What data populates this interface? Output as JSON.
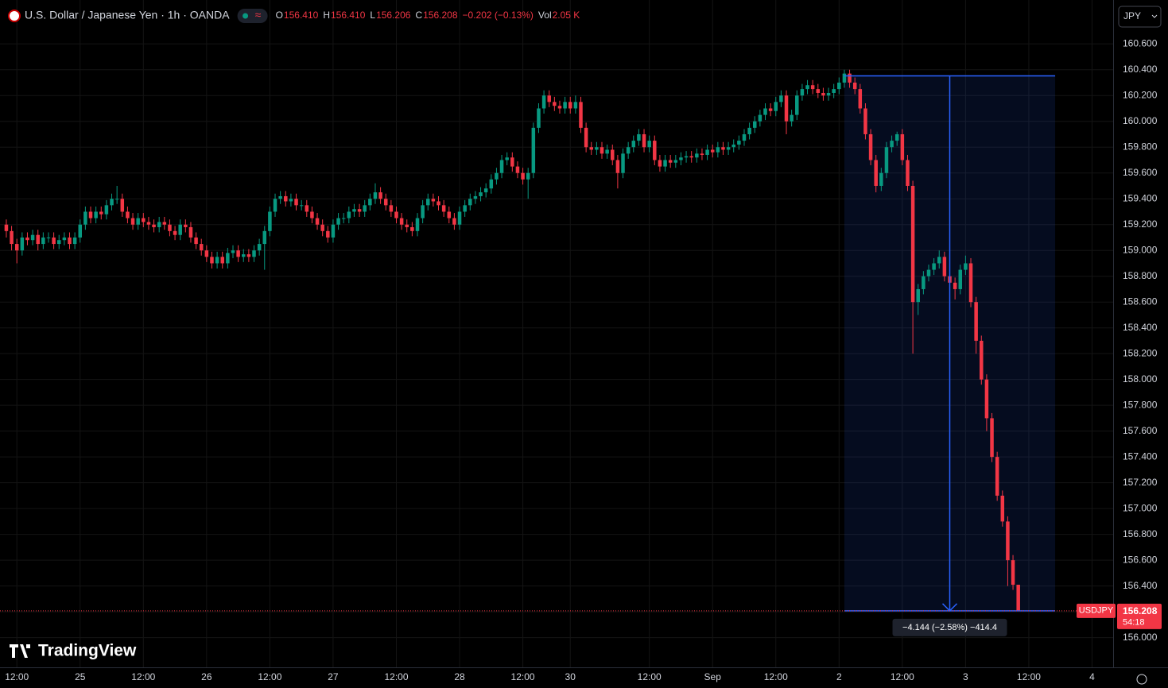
{
  "header": {
    "symbol": "U.S. Dollar / Japanese Yen · 1h · OANDA",
    "badge": "≈",
    "fields": [
      {
        "label": "O",
        "value": "156.410"
      },
      {
        "label": "H",
        "value": "156.410"
      },
      {
        "label": "L",
        "value": "156.206"
      },
      {
        "label": "C",
        "value": "156.208"
      },
      {
        "label": "",
        "value": "−0.202 (−0.13%)"
      },
      {
        "label": "Vol",
        "value": "2.05 K"
      }
    ]
  },
  "currency": "JPY",
  "logo": "TradingView",
  "last_label": {
    "symbol": "USDJPY",
    "price": "156.208",
    "countdown": "54:18"
  },
  "chart_data": {
    "type": "candlestick",
    "up_color": "#089981",
    "down_color": "#f23645",
    "grid": true,
    "xlim": [
      -1.2,
      210
    ],
    "ylim": [
      155.77,
      160.94
    ],
    "xticks": [
      {
        "value": 2,
        "label": "12:00"
      },
      {
        "value": 14,
        "label": "25"
      },
      {
        "value": 26,
        "label": "12:00"
      },
      {
        "value": 38,
        "label": "26"
      },
      {
        "value": 50,
        "label": "12:00"
      },
      {
        "value": 62,
        "label": "27"
      },
      {
        "value": 74,
        "label": "12:00"
      },
      {
        "value": 86,
        "label": "28"
      },
      {
        "value": 98,
        "label": "12:00"
      },
      {
        "value": 107,
        "label": "30"
      },
      {
        "value": 122,
        "label": "12:00"
      },
      {
        "value": 134,
        "label": "Sep"
      },
      {
        "value": 146,
        "label": "12:00"
      },
      {
        "value": 158,
        "label": "2"
      },
      {
        "value": 170,
        "label": "12:00"
      },
      {
        "value": 182,
        "label": "3"
      },
      {
        "value": 194,
        "label": "12:00"
      },
      {
        "value": 206,
        "label": "4"
      }
    ],
    "yticks": [
      {
        "value": 156,
        "label": "156.000"
      },
      {
        "value": 156.2,
        "label": "156.200"
      },
      {
        "value": 156.4,
        "label": "156.400"
      },
      {
        "value": 156.6,
        "label": "156.600"
      },
      {
        "value": 156.8,
        "label": "156.800"
      },
      {
        "value": 157,
        "label": "157.000"
      },
      {
        "value": 157.2,
        "label": "157.200"
      },
      {
        "value": 157.4,
        "label": "157.400"
      },
      {
        "value": 157.6,
        "label": "157.600"
      },
      {
        "value": 157.8,
        "label": "157.800"
      },
      {
        "value": 158,
        "label": "158.000"
      },
      {
        "value": 158.2,
        "label": "158.200"
      },
      {
        "value": 158.4,
        "label": "158.400"
      },
      {
        "value": 158.6,
        "label": "158.600"
      },
      {
        "value": 158.8,
        "label": "158.800"
      },
      {
        "value": 159,
        "label": "159.000"
      },
      {
        "value": 159.2,
        "label": "159.200"
      },
      {
        "value": 159.4,
        "label": "159.400"
      },
      {
        "value": 159.6,
        "label": "159.600"
      },
      {
        "value": 159.8,
        "label": "159.800"
      },
      {
        "value": 160,
        "label": "160.000"
      },
      {
        "value": 160.2,
        "label": "160.200"
      },
      {
        "value": 160.4,
        "label": "160.400"
      },
      {
        "value": 160.6,
        "label": "160.600"
      }
    ],
    "measure": {
      "start": 159,
      "end": 199,
      "high": 160.352,
      "low": 156.208,
      "color": "#2962ff",
      "label": "−4.144 (−2.58%) −414.4"
    },
    "candles": [
      [
        159.2,
        159.24,
        159.1,
        159.15
      ],
      [
        159.15,
        159.19,
        159.0,
        159.05
      ],
      [
        159.05,
        159.09,
        158.9,
        159.0
      ],
      [
        159.0,
        159.14,
        158.96,
        159.1
      ],
      [
        159.1,
        159.14,
        159.04,
        159.08
      ],
      [
        159.08,
        159.16,
        159.04,
        159.12
      ],
      [
        159.12,
        159.16,
        159.0,
        159.05
      ],
      [
        159.05,
        159.14,
        159.01,
        159.1
      ],
      [
        159.1,
        159.14,
        159.06,
        159.1
      ],
      [
        159.1,
        159.14,
        159.01,
        159.05
      ],
      [
        159.05,
        159.12,
        159.01,
        159.08
      ],
      [
        159.08,
        159.14,
        159.04,
        159.1
      ],
      [
        159.1,
        159.14,
        159.01,
        159.05
      ],
      [
        159.05,
        159.14,
        159.01,
        159.1
      ],
      [
        159.1,
        159.24,
        159.06,
        159.2
      ],
      [
        159.2,
        159.34,
        159.16,
        159.3
      ],
      [
        159.3,
        159.34,
        159.21,
        159.25
      ],
      [
        159.25,
        159.34,
        159.21,
        159.3
      ],
      [
        159.3,
        159.34,
        159.24,
        159.28
      ],
      [
        159.28,
        159.39,
        159.24,
        159.35
      ],
      [
        159.35,
        159.44,
        159.31,
        159.4
      ],
      [
        159.4,
        159.5,
        159.36,
        159.4
      ],
      [
        159.4,
        159.44,
        159.26,
        159.3
      ],
      [
        159.3,
        159.34,
        159.21,
        159.25
      ],
      [
        159.25,
        159.29,
        159.16,
        159.2
      ],
      [
        159.2,
        159.29,
        159.16,
        159.25
      ],
      [
        159.25,
        159.29,
        159.18,
        159.22
      ],
      [
        159.22,
        159.26,
        159.16,
        159.2
      ],
      [
        159.2,
        159.24,
        159.14,
        159.18
      ],
      [
        159.18,
        159.26,
        159.14,
        159.22
      ],
      [
        159.22,
        159.26,
        159.16,
        159.2
      ],
      [
        159.2,
        159.24,
        159.11,
        159.15
      ],
      [
        159.15,
        159.19,
        159.08,
        159.12
      ],
      [
        159.12,
        159.24,
        159.08,
        159.2
      ],
      [
        159.2,
        159.24,
        159.14,
        159.18
      ],
      [
        159.18,
        159.22,
        159.06,
        159.1
      ],
      [
        159.1,
        159.14,
        159.01,
        159.05
      ],
      [
        159.05,
        159.09,
        158.96,
        159.0
      ],
      [
        159.0,
        159.04,
        158.91,
        158.95
      ],
      [
        158.95,
        158.99,
        158.86,
        158.9
      ],
      [
        158.9,
        158.99,
        158.86,
        158.95
      ],
      [
        158.95,
        158.99,
        158.86,
        158.9
      ],
      [
        158.9,
        159.02,
        158.86,
        158.98
      ],
      [
        158.98,
        159.04,
        158.94,
        159.0
      ],
      [
        159.0,
        159.04,
        158.91,
        158.95
      ],
      [
        158.95,
        159.01,
        158.91,
        158.97
      ],
      [
        158.97,
        159.01,
        158.91,
        158.95
      ],
      [
        158.95,
        159.04,
        158.91,
        159.0
      ],
      [
        159.0,
        159.09,
        158.96,
        159.05
      ],
      [
        159.05,
        159.19,
        158.85,
        159.15
      ],
      [
        159.15,
        159.34,
        159.11,
        159.3
      ],
      [
        159.3,
        159.44,
        159.26,
        159.4
      ],
      [
        159.4,
        159.46,
        159.36,
        159.42
      ],
      [
        159.42,
        159.46,
        159.34,
        159.38
      ],
      [
        159.38,
        159.44,
        159.34,
        159.4
      ],
      [
        159.4,
        159.44,
        159.31,
        159.35
      ],
      [
        159.35,
        159.39,
        159.31,
        159.35
      ],
      [
        159.35,
        159.39,
        159.26,
        159.3
      ],
      [
        159.3,
        159.34,
        159.21,
        159.25
      ],
      [
        159.25,
        159.29,
        159.16,
        159.2
      ],
      [
        159.2,
        159.24,
        159.11,
        159.15
      ],
      [
        159.15,
        159.19,
        159.06,
        159.1
      ],
      [
        159.1,
        159.24,
        159.06,
        159.2
      ],
      [
        159.2,
        159.29,
        159.16,
        159.25
      ],
      [
        159.25,
        159.29,
        159.21,
        159.25
      ],
      [
        159.25,
        159.34,
        159.21,
        159.3
      ],
      [
        159.3,
        159.36,
        159.26,
        159.32
      ],
      [
        159.32,
        159.36,
        159.26,
        159.3
      ],
      [
        159.3,
        159.39,
        159.26,
        159.35
      ],
      [
        159.35,
        159.44,
        159.31,
        159.4
      ],
      [
        159.4,
        159.52,
        159.36,
        159.45
      ],
      [
        159.45,
        159.49,
        159.36,
        159.4
      ],
      [
        159.4,
        159.44,
        159.31,
        159.35
      ],
      [
        159.35,
        159.39,
        159.26,
        159.3
      ],
      [
        159.3,
        159.34,
        159.21,
        159.25
      ],
      [
        159.25,
        159.29,
        159.16,
        159.2
      ],
      [
        159.2,
        159.24,
        159.14,
        159.18
      ],
      [
        159.18,
        159.22,
        159.11,
        159.15
      ],
      [
        159.15,
        159.29,
        159.11,
        159.25
      ],
      [
        159.25,
        159.39,
        159.21,
        159.35
      ],
      [
        159.35,
        159.44,
        159.31,
        159.4
      ],
      [
        159.4,
        159.44,
        159.34,
        159.38
      ],
      [
        159.38,
        159.42,
        159.31,
        159.35
      ],
      [
        159.35,
        159.39,
        159.26,
        159.3
      ],
      [
        159.3,
        159.34,
        159.21,
        159.25
      ],
      [
        159.25,
        159.29,
        159.16,
        159.2
      ],
      [
        159.2,
        159.34,
        159.16,
        159.3
      ],
      [
        159.3,
        159.39,
        159.26,
        159.35
      ],
      [
        159.35,
        159.44,
        159.31,
        159.4
      ],
      [
        159.4,
        159.46,
        159.36,
        159.42
      ],
      [
        159.42,
        159.49,
        159.38,
        159.45
      ],
      [
        159.45,
        159.52,
        159.41,
        159.48
      ],
      [
        159.48,
        159.59,
        159.44,
        159.55
      ],
      [
        159.55,
        159.64,
        159.51,
        159.6
      ],
      [
        159.6,
        159.74,
        159.56,
        159.7
      ],
      [
        159.7,
        159.76,
        159.66,
        159.72
      ],
      [
        159.72,
        159.76,
        159.61,
        159.65
      ],
      [
        159.65,
        159.69,
        159.56,
        159.6
      ],
      [
        159.6,
        159.64,
        159.51,
        159.55
      ],
      [
        159.55,
        159.64,
        159.4,
        159.6
      ],
      [
        159.6,
        159.99,
        159.56,
        159.95
      ],
      [
        159.95,
        160.14,
        159.91,
        160.1
      ],
      [
        160.1,
        160.24,
        160.06,
        160.2
      ],
      [
        160.2,
        160.24,
        160.11,
        160.15
      ],
      [
        160.15,
        160.19,
        160.08,
        160.12
      ],
      [
        160.12,
        160.16,
        160.06,
        160.1
      ],
      [
        160.1,
        160.19,
        160.06,
        160.15
      ],
      [
        160.15,
        160.19,
        160.06,
        160.1
      ],
      [
        160.1,
        160.2,
        160.06,
        160.15
      ],
      [
        160.15,
        160.19,
        159.91,
        159.95
      ],
      [
        159.95,
        159.99,
        159.76,
        159.8
      ],
      [
        159.8,
        159.84,
        159.74,
        159.78
      ],
      [
        159.78,
        159.84,
        159.74,
        159.8
      ],
      [
        159.8,
        159.84,
        159.71,
        159.75
      ],
      [
        159.75,
        159.82,
        159.71,
        159.78
      ],
      [
        159.78,
        159.82,
        159.66,
        159.7
      ],
      [
        159.7,
        159.74,
        159.48,
        159.6
      ],
      [
        159.6,
        159.79,
        159.56,
        159.75
      ],
      [
        159.75,
        159.84,
        159.71,
        159.8
      ],
      [
        159.8,
        159.89,
        159.76,
        159.85
      ],
      [
        159.85,
        159.94,
        159.81,
        159.9
      ],
      [
        159.9,
        159.94,
        159.76,
        159.8
      ],
      [
        159.8,
        159.89,
        159.76,
        159.85
      ],
      [
        159.85,
        159.89,
        159.66,
        159.7
      ],
      [
        159.7,
        159.74,
        159.61,
        159.65
      ],
      [
        159.65,
        159.74,
        159.61,
        159.7
      ],
      [
        159.7,
        159.74,
        159.64,
        159.68
      ],
      [
        159.68,
        159.74,
        159.64,
        159.7
      ],
      [
        159.7,
        159.76,
        159.66,
        159.72
      ],
      [
        159.72,
        159.77,
        159.68,
        159.73
      ],
      [
        159.73,
        159.77,
        159.68,
        159.72
      ],
      [
        159.72,
        159.79,
        159.68,
        159.75
      ],
      [
        159.75,
        159.79,
        159.7,
        159.74
      ],
      [
        159.74,
        159.82,
        159.7,
        159.78
      ],
      [
        159.78,
        159.82,
        159.72,
        159.76
      ],
      [
        159.76,
        159.84,
        159.72,
        159.8
      ],
      [
        159.8,
        159.84,
        159.74,
        159.78
      ],
      [
        159.78,
        159.84,
        159.74,
        159.8
      ],
      [
        159.8,
        159.86,
        159.76,
        159.82
      ],
      [
        159.82,
        159.89,
        159.78,
        159.85
      ],
      [
        159.85,
        159.94,
        159.81,
        159.9
      ],
      [
        159.9,
        159.99,
        159.86,
        159.95
      ],
      [
        159.95,
        160.04,
        159.91,
        160.0
      ],
      [
        160.0,
        160.09,
        159.96,
        160.05
      ],
      [
        160.05,
        160.14,
        160.01,
        160.1
      ],
      [
        160.1,
        160.14,
        160.04,
        160.08
      ],
      [
        160.08,
        160.19,
        160.04,
        160.15
      ],
      [
        160.15,
        160.24,
        160.11,
        160.2
      ],
      [
        160.2,
        160.24,
        159.9,
        160.0
      ],
      [
        160.0,
        160.09,
        159.96,
        160.05
      ],
      [
        160.05,
        160.24,
        160.01,
        160.2
      ],
      [
        160.2,
        160.29,
        160.16,
        160.25
      ],
      [
        160.25,
        160.32,
        160.21,
        160.28
      ],
      [
        160.28,
        160.32,
        160.21,
        160.25
      ],
      [
        160.25,
        160.29,
        160.18,
        160.22
      ],
      [
        160.22,
        160.26,
        160.16,
        160.2
      ],
      [
        160.2,
        160.26,
        160.16,
        160.22
      ],
      [
        160.22,
        160.29,
        160.18,
        160.25
      ],
      [
        160.25,
        160.34,
        160.21,
        160.3
      ],
      [
        160.3,
        160.4,
        160.26,
        160.37
      ],
      [
        160.37,
        160.4,
        160.26,
        160.3
      ],
      [
        160.3,
        160.34,
        160.21,
        160.25
      ],
      [
        160.25,
        160.29,
        160.06,
        160.1
      ],
      [
        160.1,
        160.14,
        159.86,
        159.9
      ],
      [
        159.9,
        159.94,
        159.66,
        159.7
      ],
      [
        159.7,
        159.74,
        159.45,
        159.5
      ],
      [
        159.5,
        159.64,
        159.46,
        159.6
      ],
      [
        159.6,
        159.84,
        159.56,
        159.8
      ],
      [
        159.8,
        159.89,
        159.76,
        159.85
      ],
      [
        159.85,
        159.92,
        159.81,
        159.9
      ],
      [
        159.9,
        159.94,
        159.66,
        159.7
      ],
      [
        159.7,
        159.74,
        159.46,
        159.5
      ],
      [
        159.5,
        159.54,
        158.2,
        158.6
      ],
      [
        158.6,
        158.74,
        158.5,
        158.7
      ],
      [
        158.7,
        158.84,
        158.66,
        158.8
      ],
      [
        158.8,
        158.89,
        158.76,
        158.85
      ],
      [
        158.85,
        158.94,
        158.81,
        158.9
      ],
      [
        158.9,
        159.0,
        158.86,
        158.95
      ],
      [
        158.95,
        158.99,
        158.76,
        158.8
      ],
      [
        158.8,
        158.84,
        158.71,
        158.75
      ],
      [
        158.75,
        158.79,
        158.62,
        158.7
      ],
      [
        158.7,
        158.89,
        158.66,
        158.85
      ],
      [
        158.85,
        158.96,
        158.81,
        158.9
      ],
      [
        158.9,
        158.94,
        158.56,
        158.6
      ],
      [
        158.6,
        158.64,
        158.2,
        158.3
      ],
      [
        158.3,
        158.34,
        157.96,
        158.0
      ],
      [
        158.0,
        158.04,
        157.6,
        157.7
      ],
      [
        157.7,
        157.74,
        157.36,
        157.4
      ],
      [
        157.4,
        157.44,
        157.06,
        157.1
      ],
      [
        157.1,
        157.14,
        156.86,
        156.9
      ],
      [
        156.9,
        156.94,
        156.4,
        156.6
      ],
      [
        156.6,
        156.64,
        156.37,
        156.41
      ],
      [
        156.41,
        156.41,
        156.206,
        156.208
      ]
    ]
  }
}
